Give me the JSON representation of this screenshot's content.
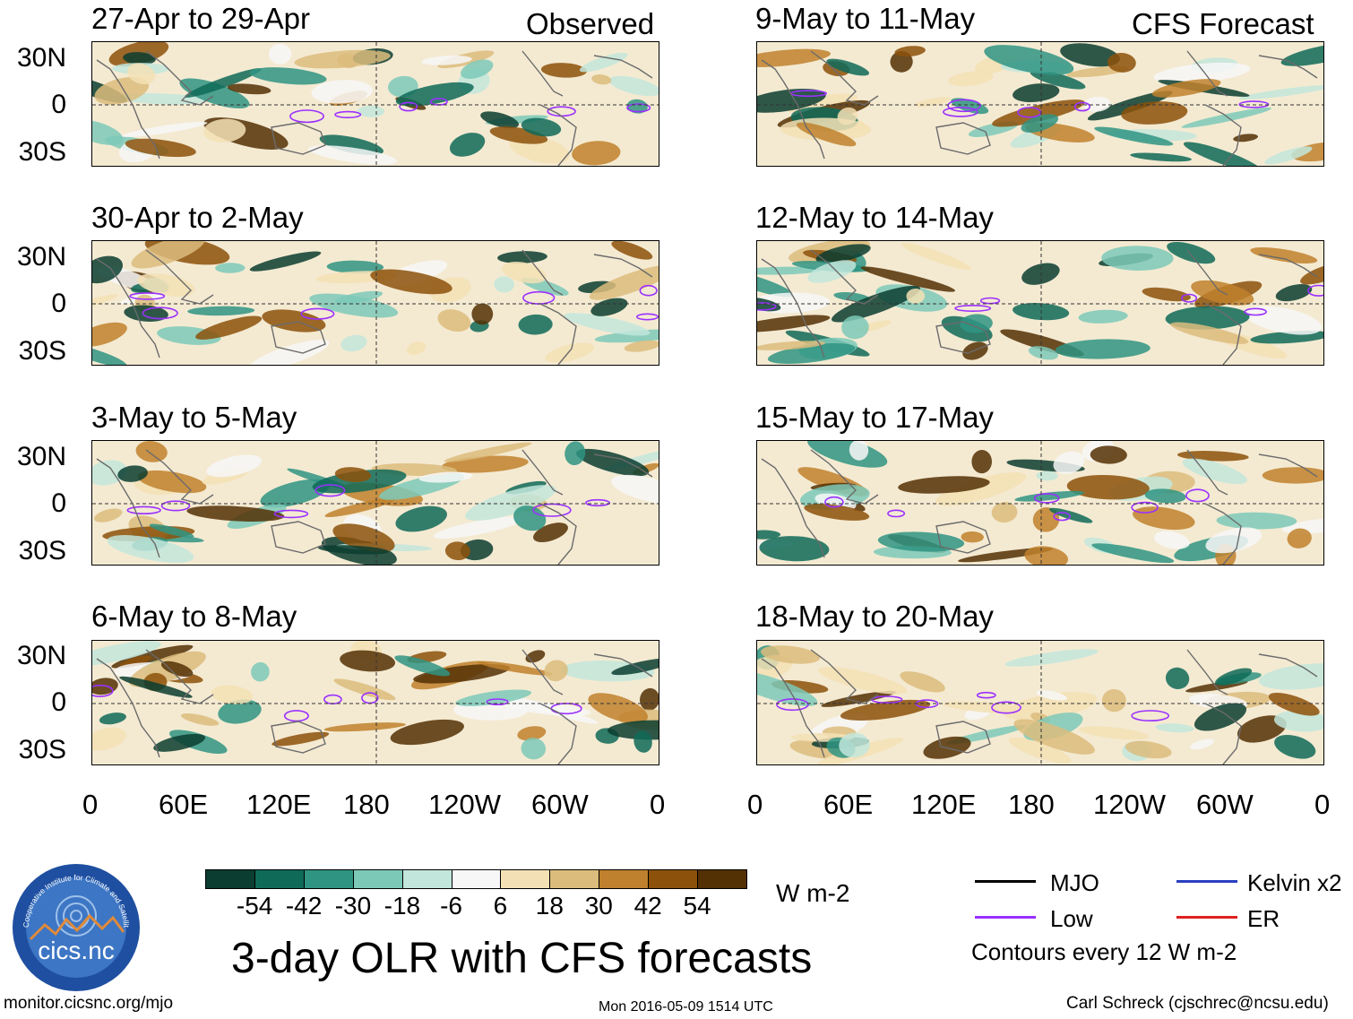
{
  "header": {
    "observed_label": "Observed",
    "forecast_label": "CFS Forecast"
  },
  "panels": {
    "observed": [
      {
        "title": "27-Apr to 29-Apr"
      },
      {
        "title": "30-Apr to 2-May"
      },
      {
        "title": "3-May to 5-May"
      },
      {
        "title": "6-May to 8-May"
      }
    ],
    "forecast": [
      {
        "title": "9-May to 11-May"
      },
      {
        "title": "12-May to 14-May"
      },
      {
        "title": "15-May to 17-May"
      },
      {
        "title": "18-May to 20-May"
      }
    ]
  },
  "axes": {
    "lat_labels": [
      "30N",
      "0",
      "30S"
    ],
    "lon_labels": [
      "0",
      "60E",
      "120E",
      "180",
      "120W",
      "60W",
      "0"
    ]
  },
  "colorbar": {
    "colors": [
      "#0b3d30",
      "#0f6a58",
      "#2f9482",
      "#7dc9b8",
      "#c2e6dc",
      "#f7f7f7",
      "#f3e1b5",
      "#dcbc7c",
      "#bf812d",
      "#8c510a",
      "#543005"
    ],
    "ticks": [
      "-54",
      "-42",
      "-30",
      "-18",
      "-6",
      "6",
      "18",
      "30",
      "42",
      "54"
    ],
    "units": "W m-2"
  },
  "title": "3-day OLR with CFS forecasts",
  "logo": {
    "text": "cics.nc",
    "ring_text": "Cooperative Institute for Climate and Satellites",
    "colors": {
      "bg": "#1f4fa0",
      "mountain": "#e08a3a"
    }
  },
  "legend": {
    "items": [
      {
        "label": "MJO",
        "color": "#000000"
      },
      {
        "label": "Kelvin x2",
        "color": "#2a3fbf"
      },
      {
        "label": "Low",
        "color": "#9b30ff"
      },
      {
        "label": "ER",
        "color": "#e02020"
      }
    ],
    "contours_note": "Contours every 12 W m-2"
  },
  "footer": {
    "url": "monitor.cicsnc.org/mjo",
    "timestamp": "Mon 2016-05-09 1514 UTC",
    "author": "Carl Schreck (cjschrec@ncsu.edu)"
  }
}
